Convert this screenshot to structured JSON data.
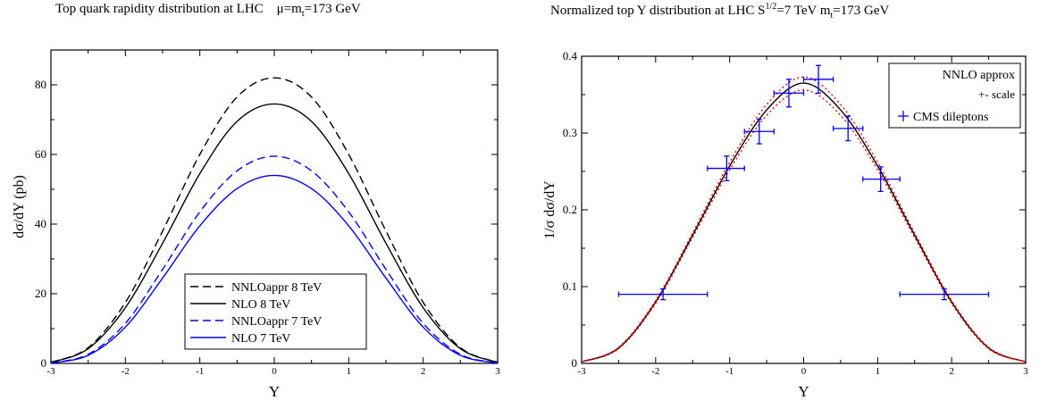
{
  "left": {
    "title": {
      "text": "Top quark rapidity distribution at  LHC",
      "mu": "μ=m",
      "mu_sub": "t",
      "mu_rest": "=173 GeV"
    },
    "legend": [
      "NNLOappr  8 TeV",
      "NLO  8 TeV",
      "NNLOappr 7 TeV",
      "NLO 7 TeV"
    ]
  },
  "right": {
    "title": {
      "text": "Normalized top Y distribution at LHC   S",
      "s_sup": "1/2",
      "s_rest": "=7 TeV  m",
      "m_sub": "t",
      "m_rest": "=173 GeV"
    },
    "legend": [
      "NNLO  approx",
      "+- scale",
      "CMS dileptons"
    ]
  },
  "colors": {
    "black": "#000000",
    "blue": "#0000ff",
    "red": "#ff0000",
    "darkred": "#8b0000"
  },
  "chart_data": [
    {
      "type": "line",
      "title": "Top quark rapidity distribution at  LHC     μ=mt=173 GeV",
      "xlabel": "Y",
      "ylabel": "dσ/dY (pb)",
      "xlim": [
        -3,
        3
      ],
      "ylim": [
        0,
        90
      ],
      "xticks": [
        -3,
        -2,
        -1,
        0,
        1,
        2,
        3
      ],
      "yticks": [
        0,
        20,
        40,
        60,
        80
      ],
      "legend_position": "bottom-right",
      "x": [
        -3,
        -2.5,
        -2,
        -1.5,
        -1,
        -0.5,
        0,
        0.5,
        1,
        1.5,
        2,
        2.5,
        3
      ],
      "series": [
        {
          "name": "NNLOappr  8 TeV",
          "color": "#000000",
          "style": "dashed",
          "values": [
            0.3,
            4.5,
            17.5,
            38,
            60,
            76.5,
            82,
            76.5,
            60,
            38,
            17.5,
            4.5,
            0.3
          ]
        },
        {
          "name": "NLO  8 TeV",
          "color": "#000000",
          "style": "solid",
          "values": [
            0.3,
            4.2,
            16,
            34.5,
            54.5,
            69.5,
            74.5,
            69.5,
            54.5,
            34.5,
            16,
            4.2,
            0.3
          ]
        },
        {
          "name": "NNLOappr 7 TeV",
          "color": "#0000ff",
          "style": "dashed",
          "values": [
            0.1,
            2.6,
            11.5,
            27,
            43.5,
            55.3,
            59.5,
            55.3,
            43.5,
            27,
            11.5,
            2.6,
            0.1
          ]
        },
        {
          "name": "NLO 7 TeV",
          "color": "#0000ff",
          "style": "solid",
          "values": [
            0.1,
            2.3,
            10.4,
            24.5,
            39.5,
            50.2,
            54,
            50.2,
            39.5,
            24.5,
            10.4,
            2.3,
            0.1
          ]
        }
      ]
    },
    {
      "type": "line",
      "title": "Normalized top Y distribution at LHC   S1/2=7 TeV  mt=173 GeV",
      "xlabel": "Y",
      "ylabel": "1/σ  dσ/dY",
      "xlim": [
        -3,
        3
      ],
      "ylim": [
        0,
        0.4
      ],
      "xticks": [
        -3,
        -2,
        -1,
        0,
        1,
        2,
        3
      ],
      "yticks": [
        0,
        0.1,
        0.2,
        0.3,
        0.4
      ],
      "legend_position": "top-right",
      "x": [
        -3,
        -2.5,
        -2,
        -1.5,
        -1,
        -0.5,
        0,
        0.5,
        1,
        1.5,
        2,
        2.5,
        3
      ],
      "series": [
        {
          "name": "NNLO  approx",
          "color": "#000000",
          "style": "solid",
          "values": [
            0.002,
            0.02,
            0.08,
            0.167,
            0.257,
            0.33,
            0.365,
            0.33,
            0.257,
            0.167,
            0.08,
            0.02,
            0.002
          ]
        },
        {
          "name": "+- scale",
          "color": "#ff0000",
          "style": "dotted",
          "values": [
            0.002,
            0.021,
            0.082,
            0.17,
            0.262,
            0.337,
            0.373,
            0.337,
            0.262,
            0.17,
            0.082,
            0.021,
            0.002
          ]
        },
        {
          "name": "+- scale",
          "color": "#ff0000",
          "style": "dotted",
          "values": [
            0.002,
            0.019,
            0.078,
            0.164,
            0.252,
            0.323,
            0.356,
            0.323,
            0.252,
            0.164,
            0.078,
            0.019,
            0.002
          ]
        },
        {
          "name": "CMS dileptons",
          "color": "#0000ff",
          "style": "errorbar",
          "points": [
            {
              "x": -1.9,
              "y": 0.09,
              "xlo": -2.5,
              "xhi": -1.3,
              "ylo": 0.083,
              "yhi": 0.097
            },
            {
              "x": -1.04,
              "y": 0.254,
              "xlo": -1.3,
              "xhi": -0.8,
              "ylo": 0.238,
              "yhi": 0.27
            },
            {
              "x": -0.6,
              "y": 0.302,
              "xlo": -0.8,
              "xhi": -0.4,
              "ylo": 0.286,
              "yhi": 0.318
            },
            {
              "x": -0.2,
              "y": 0.352,
              "xlo": -0.4,
              "xhi": 0.0,
              "ylo": 0.334,
              "yhi": 0.37
            },
            {
              "x": 0.2,
              "y": 0.37,
              "xlo": 0.0,
              "xhi": 0.4,
              "ylo": 0.352,
              "yhi": 0.388
            },
            {
              "x": 0.6,
              "y": 0.306,
              "xlo": 0.4,
              "xhi": 0.8,
              "ylo": 0.29,
              "yhi": 0.322
            },
            {
              "x": 1.04,
              "y": 0.24,
              "xlo": 0.8,
              "xhi": 1.3,
              "ylo": 0.224,
              "yhi": 0.256
            },
            {
              "x": 1.9,
              "y": 0.09,
              "xlo": 1.3,
              "xhi": 2.5,
              "ylo": 0.083,
              "yhi": 0.097
            }
          ]
        }
      ]
    }
  ]
}
